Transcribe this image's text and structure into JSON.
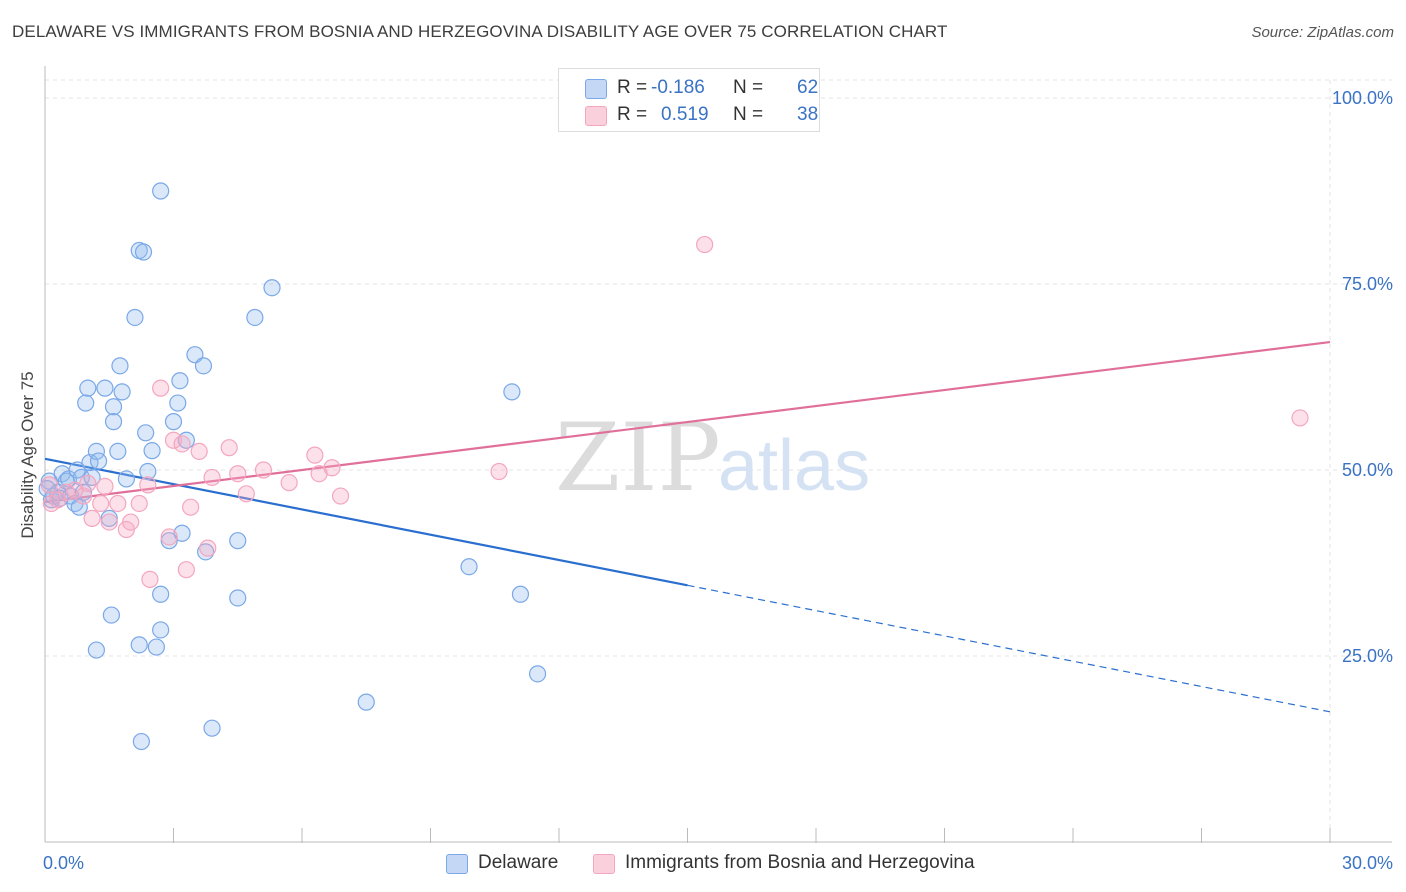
{
  "chart_data": {
    "type": "scatter",
    "title": "DELAWARE VS IMMIGRANTS FROM BOSNIA AND HERZEGOVINA DISABILITY AGE OVER 75 CORRELATION CHART",
    "source": "Source: ZipAtlas.com",
    "xlabel": "",
    "ylabel": "Disability Age Over 75",
    "xlim": [
      0,
      30
    ],
    "ylim": [
      0,
      100
    ],
    "x_tick_labels": [
      "0.0%",
      "30.0%"
    ],
    "y_ticks": [
      25,
      50,
      75,
      100
    ],
    "y_tick_labels": [
      "25.0%",
      "50.0%",
      "75.0%",
      "100.0%"
    ],
    "grid": true,
    "watermark": "ZIPatlas",
    "legend_stats": [
      {
        "r_label": "R =",
        "r_value": "-0.186",
        "n_label": "N =",
        "n_value": "62"
      },
      {
        "r_label": "R =",
        "r_value": "0.519",
        "n_label": "N =",
        "n_value": "38"
      }
    ],
    "series": [
      {
        "name": "Delaware",
        "color": "#7aa8e8",
        "line_color": "#2a6fcf",
        "trend": {
          "x0": 0.0,
          "y0": 51.5,
          "x1": 15.0,
          "y1": 34.5,
          "dash_to_x": 30.0,
          "dash_to_y": 17.5
        },
        "points": [
          [
            0.1,
            48.5
          ],
          [
            0.15,
            46.0
          ],
          [
            0.2,
            46.5
          ],
          [
            0.3,
            47.0
          ],
          [
            0.35,
            46.2
          ],
          [
            0.4,
            49.5
          ],
          [
            0.5,
            48.5
          ],
          [
            0.55,
            48.8
          ],
          [
            0.6,
            46.5
          ],
          [
            0.7,
            45.5
          ],
          [
            0.75,
            50.0
          ],
          [
            0.8,
            45.0
          ],
          [
            0.85,
            49.0
          ],
          [
            0.9,
            47.0
          ],
          [
            1.0,
            61.0
          ],
          [
            0.95,
            59.0
          ],
          [
            1.1,
            49.0
          ],
          [
            1.05,
            51.0
          ],
          [
            1.2,
            52.5
          ],
          [
            1.25,
            51.2
          ],
          [
            1.4,
            61.0
          ],
          [
            1.5,
            43.5
          ],
          [
            1.6,
            58.5
          ],
          [
            1.6,
            56.5
          ],
          [
            1.7,
            52.5
          ],
          [
            1.75,
            64.0
          ],
          [
            1.8,
            60.5
          ],
          [
            1.9,
            48.8
          ],
          [
            2.1,
            70.5
          ],
          [
            2.2,
            79.5
          ],
          [
            2.3,
            79.3
          ],
          [
            2.35,
            55.0
          ],
          [
            2.4,
            49.8
          ],
          [
            2.5,
            52.6
          ],
          [
            2.7,
            87.5
          ],
          [
            3.0,
            56.5
          ],
          [
            3.1,
            59.0
          ],
          [
            3.15,
            62.0
          ],
          [
            3.2,
            41.5
          ],
          [
            3.3,
            54.0
          ],
          [
            3.5,
            65.5
          ],
          [
            3.7,
            64.0
          ],
          [
            3.75,
            39.0
          ],
          [
            4.5,
            40.5
          ],
          [
            4.9,
            70.5
          ],
          [
            5.3,
            74.5
          ],
          [
            1.55,
            30.5
          ],
          [
            1.2,
            25.8
          ],
          [
            2.2,
            26.5
          ],
          [
            2.6,
            26.2
          ],
          [
            2.7,
            28.5
          ],
          [
            2.7,
            33.3
          ],
          [
            4.5,
            32.8
          ],
          [
            2.25,
            13.5
          ],
          [
            3.9,
            15.3
          ],
          [
            7.5,
            18.8
          ],
          [
            9.9,
            37.0
          ],
          [
            11.1,
            33.3
          ],
          [
            11.5,
            22.6
          ],
          [
            10.9,
            60.5
          ],
          [
            2.9,
            40.5
          ],
          [
            0.05,
            47.5
          ]
        ]
      },
      {
        "name": "Immigrants from Bosnia and Herzegovina",
        "color": "#f4a6bf",
        "line_color": "#e0709a",
        "trend": {
          "x0": 0.0,
          "y0": 45.7,
          "x1": 30.0,
          "y1": 67.2
        },
        "points": [
          [
            0.1,
            48.0
          ],
          [
            0.15,
            45.5
          ],
          [
            0.3,
            46.0
          ],
          [
            0.5,
            47.0
          ],
          [
            0.7,
            47.3
          ],
          [
            0.9,
            46.5
          ],
          [
            1.0,
            48.2
          ],
          [
            1.1,
            43.5
          ],
          [
            1.3,
            45.5
          ],
          [
            1.4,
            47.8
          ],
          [
            1.5,
            43.0
          ],
          [
            1.7,
            45.5
          ],
          [
            1.9,
            42.0
          ],
          [
            2.0,
            43.0
          ],
          [
            2.2,
            45.5
          ],
          [
            2.4,
            48.0
          ],
          [
            2.45,
            35.3
          ],
          [
            2.7,
            61.0
          ],
          [
            2.9,
            41.0
          ],
          [
            3.0,
            54.0
          ],
          [
            3.2,
            53.5
          ],
          [
            3.3,
            36.6
          ],
          [
            3.4,
            45.0
          ],
          [
            3.6,
            52.5
          ],
          [
            3.8,
            39.5
          ],
          [
            3.9,
            49.0
          ],
          [
            4.3,
            53.0
          ],
          [
            4.5,
            49.5
          ],
          [
            4.7,
            46.8
          ],
          [
            5.1,
            50.0
          ],
          [
            5.7,
            48.3
          ],
          [
            6.3,
            52.0
          ],
          [
            6.4,
            49.5
          ],
          [
            6.7,
            50.3
          ],
          [
            6.9,
            46.5
          ],
          [
            10.6,
            49.8
          ],
          [
            15.4,
            80.3
          ],
          [
            29.3,
            57.0
          ]
        ]
      }
    ]
  }
}
